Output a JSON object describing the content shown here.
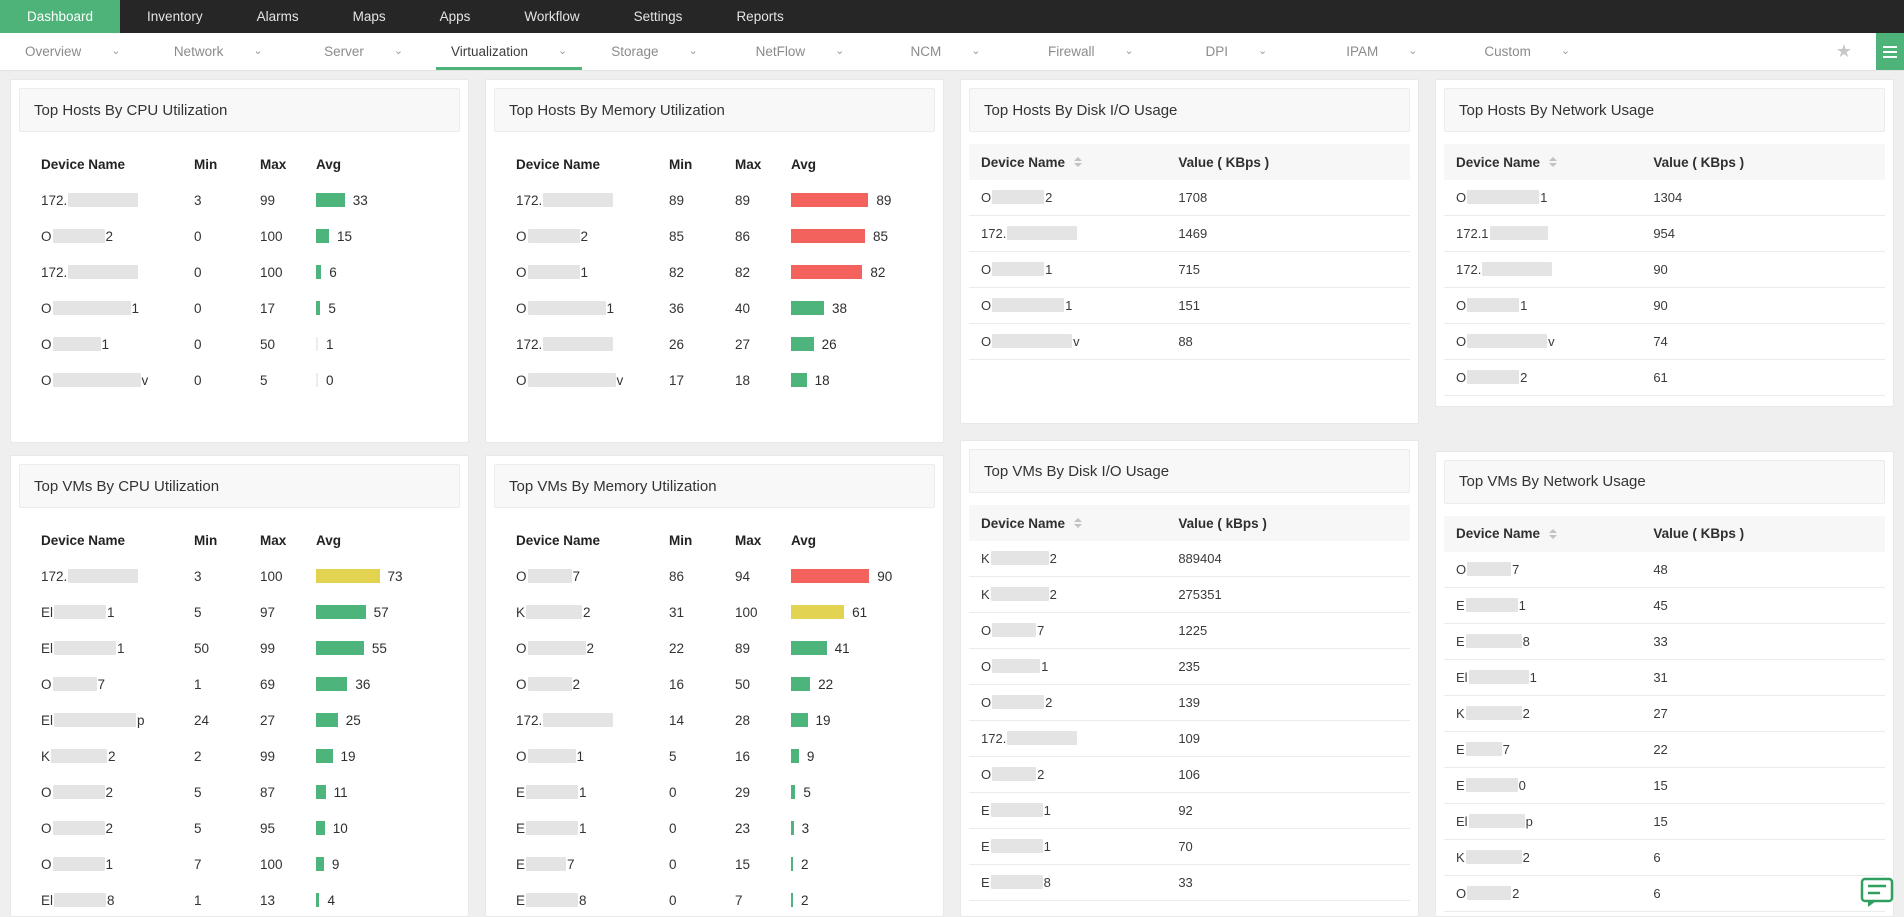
{
  "topnav": {
    "items": [
      {
        "label": "Dashboard",
        "active": true
      },
      {
        "label": "Inventory"
      },
      {
        "label": "Alarms"
      },
      {
        "label": "Maps"
      },
      {
        "label": "Apps"
      },
      {
        "label": "Workflow"
      },
      {
        "label": "Settings"
      },
      {
        "label": "Reports"
      }
    ]
  },
  "subnav": {
    "tabs": [
      {
        "label": "Overview"
      },
      {
        "label": "Network"
      },
      {
        "label": "Server"
      },
      {
        "label": "Virtualization",
        "active": true
      },
      {
        "label": "Storage"
      },
      {
        "label": "NetFlow"
      },
      {
        "label": "NCM"
      },
      {
        "label": "Firewall"
      },
      {
        "label": "DPI"
      },
      {
        "label": "IPAM"
      },
      {
        "label": "Custom"
      }
    ],
    "star_icon": "favorite-star",
    "menu_button_icon": "widget-menu"
  },
  "colors": {
    "accent_green": "#4db378",
    "bar_green": "#4db57c",
    "bar_yellow": "#e2d351",
    "bar_red": "#f4625e",
    "bar_faint": "#edeee9",
    "nav_bg": "#262626",
    "redact": "#e4e4e4"
  },
  "thresholds": {
    "red": 80,
    "yellow": 60
  },
  "panels": {
    "hosts_cpu": {
      "title": "Top Hosts By CPU Utilization",
      "type": "bar",
      "columns": [
        "Device Name",
        "Min",
        "Max",
        "Avg"
      ],
      "rows": [
        {
          "prefix": "172.",
          "suffix": "",
          "redact": 70,
          "min": 3,
          "max": 99,
          "avg": 33
        },
        {
          "prefix": "O",
          "suffix": "2",
          "redact": 52,
          "min": 0,
          "max": 100,
          "avg": 15
        },
        {
          "prefix": "172.",
          "suffix": "",
          "redact": 70,
          "min": 0,
          "max": 100,
          "avg": 6
        },
        {
          "prefix": "O",
          "suffix": "1",
          "redact": 78,
          "min": 0,
          "max": 17,
          "avg": 5
        },
        {
          "prefix": "O",
          "suffix": "1",
          "redact": 48,
          "min": 0,
          "max": 50,
          "avg": 1
        },
        {
          "prefix": "O",
          "suffix": "v",
          "redact": 88,
          "min": 0,
          "max": 5,
          "avg": 0
        }
      ]
    },
    "hosts_memory": {
      "title": "Top Hosts By Memory Utilization",
      "type": "bar",
      "columns": [
        "Device Name",
        "Min",
        "Max",
        "Avg"
      ],
      "rows": [
        {
          "prefix": "172.",
          "suffix": "",
          "redact": 70,
          "min": 89,
          "max": 89,
          "avg": 89
        },
        {
          "prefix": "O",
          "suffix": "2",
          "redact": 52,
          "min": 85,
          "max": 86,
          "avg": 85
        },
        {
          "prefix": "O",
          "suffix": "1",
          "redact": 52,
          "min": 82,
          "max": 82,
          "avg": 82
        },
        {
          "prefix": "O",
          "suffix": "1",
          "redact": 78,
          "min": 36,
          "max": 40,
          "avg": 38
        },
        {
          "prefix": "172.",
          "suffix": "",
          "redact": 70,
          "min": 26,
          "max": 27,
          "avg": 26
        },
        {
          "prefix": "O",
          "suffix": "v",
          "redact": 88,
          "min": 17,
          "max": 18,
          "avg": 18
        }
      ]
    },
    "hosts_disk": {
      "title": "Top Hosts By Disk I/O Usage",
      "type": "value",
      "columns": [
        "Device Name",
        "Value ( KBps )"
      ],
      "rows": [
        {
          "prefix": "O",
          "suffix": "2",
          "redact": 52,
          "value": "1708"
        },
        {
          "prefix": "172.",
          "suffix": "",
          "redact": 70,
          "value": "1469"
        },
        {
          "prefix": "O",
          "suffix": "1",
          "redact": 52,
          "value": "715"
        },
        {
          "prefix": "O",
          "suffix": "1",
          "redact": 72,
          "value": "151"
        },
        {
          "prefix": "O",
          "suffix": "v",
          "redact": 80,
          "value": "88"
        }
      ]
    },
    "hosts_network": {
      "title": "Top Hosts By Network Usage",
      "type": "value",
      "columns": [
        "Device Name",
        "Value ( KBps )"
      ],
      "rows": [
        {
          "prefix": "O",
          "suffix": "1",
          "redact": 72,
          "value": "1304"
        },
        {
          "prefix": "172.1",
          "suffix": "",
          "redact": 58,
          "value": "954"
        },
        {
          "prefix": "172.",
          "suffix": "",
          "redact": 70,
          "value": "90"
        },
        {
          "prefix": "O",
          "suffix": "1",
          "redact": 52,
          "value": "90"
        },
        {
          "prefix": "O",
          "suffix": "v",
          "redact": 80,
          "value": "74"
        },
        {
          "prefix": "O",
          "suffix": "2",
          "redact": 52,
          "value": "61"
        }
      ]
    },
    "vms_cpu": {
      "title": "Top VMs By CPU Utilization",
      "type": "bar",
      "columns": [
        "Device Name",
        "Min",
        "Max",
        "Avg"
      ],
      "rows": [
        {
          "prefix": "172.",
          "suffix": "",
          "redact": 70,
          "min": 3,
          "max": 100,
          "avg": 73
        },
        {
          "prefix": "El",
          "suffix": "1",
          "redact": 52,
          "min": 5,
          "max": 97,
          "avg": 57
        },
        {
          "prefix": "El",
          "suffix": "1",
          "redact": 62,
          "min": 50,
          "max": 99,
          "avg": 55
        },
        {
          "prefix": "O",
          "suffix": "7",
          "redact": 44,
          "min": 1,
          "max": 69,
          "avg": 36
        },
        {
          "prefix": "El",
          "suffix": "p",
          "redact": 82,
          "min": 24,
          "max": 27,
          "avg": 25
        },
        {
          "prefix": "K",
          "suffix": "2",
          "redact": 56,
          "min": 2,
          "max": 99,
          "avg": 19
        },
        {
          "prefix": "O",
          "suffix": "2",
          "redact": 52,
          "min": 5,
          "max": 87,
          "avg": 11
        },
        {
          "prefix": "O",
          "suffix": "2",
          "redact": 52,
          "min": 5,
          "max": 95,
          "avg": 10
        },
        {
          "prefix": "O",
          "suffix": "1",
          "redact": 52,
          "min": 7,
          "max": 100,
          "avg": 9
        },
        {
          "prefix": "El",
          "suffix": "8",
          "redact": 52,
          "min": 1,
          "max": 13,
          "avg": 4
        }
      ]
    },
    "vms_memory": {
      "title": "Top VMs By Memory Utilization",
      "type": "bar",
      "columns": [
        "Device Name",
        "Min",
        "Max",
        "Avg"
      ],
      "rows": [
        {
          "prefix": "O",
          "suffix": "7",
          "redact": 44,
          "min": 86,
          "max": 94,
          "avg": 90
        },
        {
          "prefix": "K",
          "suffix": "2",
          "redact": 56,
          "min": 31,
          "max": 100,
          "avg": 61
        },
        {
          "prefix": "O",
          "suffix": "2",
          "redact": 58,
          "min": 22,
          "max": 89,
          "avg": 41
        },
        {
          "prefix": "O",
          "suffix": "2",
          "redact": 44,
          "min": 16,
          "max": 50,
          "avg": 22
        },
        {
          "prefix": "172.",
          "suffix": "",
          "redact": 70,
          "min": 14,
          "max": 28,
          "avg": 19
        },
        {
          "prefix": "O",
          "suffix": "1",
          "redact": 48,
          "min": 5,
          "max": 16,
          "avg": 9
        },
        {
          "prefix": "E",
          "suffix": "1",
          "redact": 52,
          "min": 0,
          "max": 29,
          "avg": 5
        },
        {
          "prefix": "E",
          "suffix": "1",
          "redact": 52,
          "min": 0,
          "max": 23,
          "avg": 3
        },
        {
          "prefix": "E",
          "suffix": "7",
          "redact": 40,
          "min": 0,
          "max": 15,
          "avg": 2
        },
        {
          "prefix": "E",
          "suffix": "8",
          "redact": 52,
          "min": 0,
          "max": 7,
          "avg": 2
        }
      ]
    },
    "vms_disk": {
      "title": "Top VMs By Disk I/O Usage",
      "type": "value",
      "columns": [
        "Device Name",
        "Value ( kBps )"
      ],
      "rows": [
        {
          "prefix": "K",
          "suffix": "2",
          "redact": 58,
          "value": "889404"
        },
        {
          "prefix": "K",
          "suffix": "2",
          "redact": 58,
          "value": "275351"
        },
        {
          "prefix": "O",
          "suffix": "7",
          "redact": 44,
          "value": "1225"
        },
        {
          "prefix": "O",
          "suffix": "1",
          "redact": 48,
          "value": "235"
        },
        {
          "prefix": "O",
          "suffix": "2",
          "redact": 52,
          "value": "139"
        },
        {
          "prefix": "172.",
          "suffix": "",
          "redact": 70,
          "value": "109"
        },
        {
          "prefix": "O",
          "suffix": "2",
          "redact": 44,
          "value": "106"
        },
        {
          "prefix": "E",
          "suffix": "1",
          "redact": 52,
          "value": "92"
        },
        {
          "prefix": "E",
          "suffix": "1",
          "redact": 52,
          "value": "70"
        },
        {
          "prefix": "E",
          "suffix": "8",
          "redact": 52,
          "value": "33"
        }
      ]
    },
    "vms_network": {
      "title": "Top VMs By Network Usage",
      "type": "value",
      "columns": [
        "Device Name",
        "Value ( KBps )"
      ],
      "rows": [
        {
          "prefix": "O",
          "suffix": "7",
          "redact": 44,
          "value": "48"
        },
        {
          "prefix": "E",
          "suffix": "1",
          "redact": 52,
          "value": "45"
        },
        {
          "prefix": "E",
          "suffix": "8",
          "redact": 56,
          "value": "33"
        },
        {
          "prefix": "El",
          "suffix": "1",
          "redact": 60,
          "value": "31"
        },
        {
          "prefix": "K",
          "suffix": "2",
          "redact": 56,
          "value": "27"
        },
        {
          "prefix": "E",
          "suffix": "7",
          "redact": 36,
          "value": "22"
        },
        {
          "prefix": "E",
          "suffix": "0",
          "redact": 52,
          "value": "15"
        },
        {
          "prefix": "El",
          "suffix": "p",
          "redact": 56,
          "value": "15"
        },
        {
          "prefix": "K",
          "suffix": "2",
          "redact": 56,
          "value": "6"
        },
        {
          "prefix": "O",
          "suffix": "2",
          "redact": 44,
          "value": "6"
        }
      ]
    }
  },
  "chat_button_icon": "support-chat"
}
